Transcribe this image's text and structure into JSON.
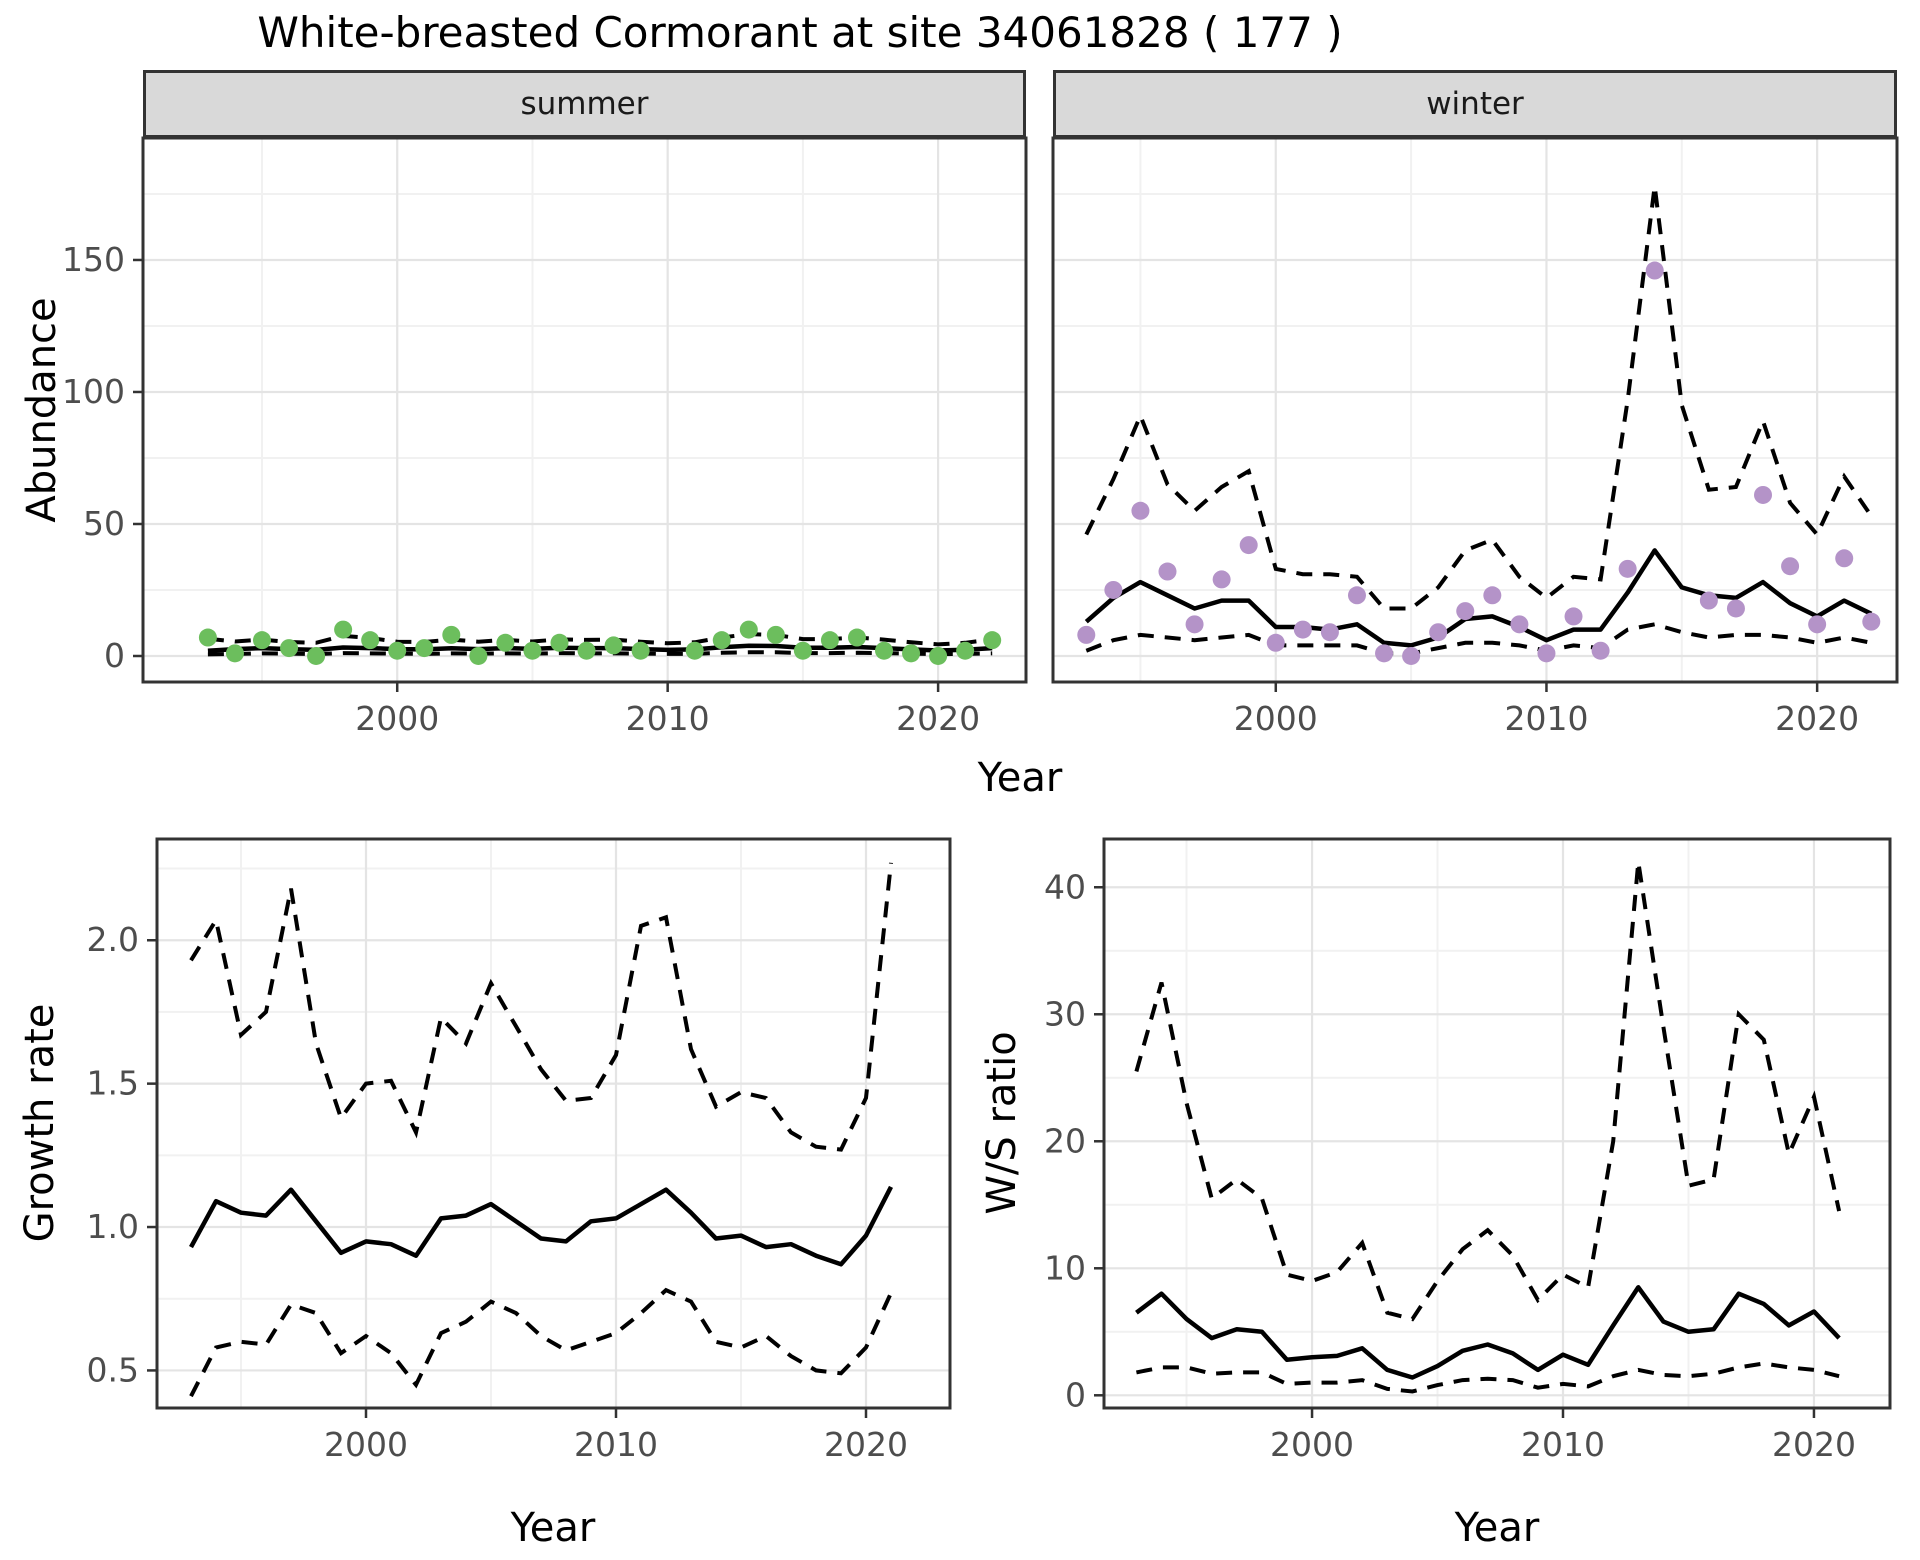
{
  "title": "White-breasted Cormorant at site 34061828 ( 177 )",
  "axes": {
    "abundance_label": "Abundance",
    "growth_label": "Growth rate",
    "ws_label": "W/S ratio",
    "year_label_top": "Year",
    "year_label_growth": "Year",
    "year_label_ws": "Year"
  },
  "facets": {
    "summer": "summer",
    "winter": "winter"
  },
  "colors": {
    "summer_point": "#6cbe5d",
    "winter_point": "#b493c8",
    "line": "#000000",
    "grid_major": "#e4e4e4",
    "grid_minor": "#f1f1f1",
    "panel_border": "#333333",
    "strip_bg": "#d9d9d9",
    "tick_text": "#4d4d4d"
  },
  "chart_data": [
    {
      "id": "summer",
      "type": "line+scatter",
      "facet_label": "summer",
      "ylabel": "Abundance",
      "xlabel": "Year",
      "x_ticks": [
        2000,
        2010,
        2020
      ],
      "x_tick_labels": [
        "2000",
        "2010",
        "2020"
      ],
      "x_minor": [
        1995,
        2005,
        2015
      ],
      "y_ticks": [
        0,
        50,
        100,
        150
      ],
      "y_tick_labels": [
        "0",
        "50",
        "100",
        "150"
      ],
      "y_minor": [
        25,
        75,
        125,
        175
      ],
      "xlim": [
        1990.6,
        2023.25
      ],
      "ylim": [
        -9.85,
        196.2
      ],
      "legend": "none",
      "grid": true,
      "point_color": "#6cbe5d",
      "years": [
        1993,
        1994,
        1995,
        1996,
        1997,
        1998,
        1999,
        2000,
        2001,
        2002,
        2003,
        2004,
        2005,
        2006,
        2007,
        2008,
        2009,
        2010,
        2011,
        2012,
        2013,
        2014,
        2015,
        2016,
        2017,
        2018,
        2019,
        2020,
        2021,
        2022
      ],
      "points": [
        [
          1993,
          7
        ],
        [
          1994,
          1
        ],
        [
          1995,
          6
        ],
        [
          1996,
          3
        ],
        [
          1997,
          0
        ],
        [
          1998,
          10
        ],
        [
          1999,
          6
        ],
        [
          2000,
          2
        ],
        [
          2001,
          3
        ],
        [
          2002,
          8
        ],
        [
          2003,
          0
        ],
        [
          2004,
          5
        ],
        [
          2005,
          2
        ],
        [
          2006,
          5
        ],
        [
          2007,
          2
        ],
        [
          2008,
          4
        ],
        [
          2009,
          2
        ],
        [
          2011,
          2
        ],
        [
          2012,
          6
        ],
        [
          2013,
          10
        ],
        [
          2014,
          8
        ],
        [
          2015,
          2
        ],
        [
          2016,
          6
        ],
        [
          2017,
          7
        ],
        [
          2018,
          2
        ],
        [
          2019,
          1
        ],
        [
          2020,
          0
        ],
        [
          2021,
          2
        ],
        [
          2022,
          6
        ]
      ],
      "fit": [
        2.0,
        2.6,
        3.0,
        2.6,
        2.3,
        3.2,
        3.0,
        2.6,
        2.5,
        2.9,
        2.6,
        3.0,
        2.7,
        3.1,
        3.0,
        3.0,
        2.6,
        2.3,
        2.5,
        3.3,
        3.9,
        3.8,
        3.1,
        3.1,
        3.4,
        3.0,
        2.5,
        2.1,
        2.4,
        3.0
      ],
      "upper": [
        6.5,
        5.5,
        6.2,
        5.3,
        5.0,
        7.6,
        6.8,
        5.4,
        5.3,
        6.2,
        5.4,
        6.1,
        5.5,
        6.3,
        6.1,
        6.2,
        5.4,
        4.8,
        5.2,
        7.0,
        8.3,
        8.0,
        6.4,
        6.4,
        7.0,
        6.2,
        5.2,
        4.4,
        5.0,
        6.3
      ],
      "lower": [
        0.6,
        0.8,
        1.0,
        0.9,
        0.7,
        1.1,
        1.0,
        0.9,
        0.8,
        1.0,
        0.9,
        1.0,
        0.9,
        1.1,
        1.0,
        1.0,
        0.9,
        0.8,
        0.8,
        1.2,
        1.4,
        1.4,
        1.1,
        1.1,
        1.2,
        1.1,
        0.9,
        0.7,
        0.8,
        1.0
      ]
    },
    {
      "id": "winter",
      "type": "line+scatter",
      "facet_label": "winter",
      "ylabel": "Abundance",
      "xlabel": "Year",
      "x_ticks": [
        2000,
        2010,
        2020
      ],
      "x_tick_labels": [
        "2000",
        "2010",
        "2020"
      ],
      "x_minor": [
        1995,
        2005,
        2015
      ],
      "y_ticks": [
        0,
        50,
        100,
        150
      ],
      "y_tick_labels": [
        "0",
        "50",
        "100",
        "150"
      ],
      "y_minor": [
        25,
        75,
        125,
        175
      ],
      "xlim": [
        1991.77,
        2022.95
      ],
      "ylim": [
        -9.85,
        196.2
      ],
      "grid": true,
      "point_color": "#b493c8",
      "years": [
        1993,
        1994,
        1995,
        1996,
        1997,
        1998,
        1999,
        2000,
        2001,
        2002,
        2003,
        2004,
        2005,
        2006,
        2007,
        2008,
        2009,
        2010,
        2011,
        2012,
        2013,
        2014,
        2015,
        2016,
        2017,
        2018,
        2019,
        2020,
        2021,
        2022
      ],
      "points": [
        [
          1993,
          8
        ],
        [
          1994,
          25
        ],
        [
          1995,
          55
        ],
        [
          1996,
          32
        ],
        [
          1997,
          12
        ],
        [
          1998,
          29
        ],
        [
          1999,
          42
        ],
        [
          2000,
          5
        ],
        [
          2001,
          10
        ],
        [
          2002,
          9
        ],
        [
          2003,
          23
        ],
        [
          2004,
          1
        ],
        [
          2005,
          0
        ],
        [
          2006,
          9
        ],
        [
          2007,
          17
        ],
        [
          2008,
          23
        ],
        [
          2009,
          12
        ],
        [
          2010,
          1
        ],
        [
          2011,
          15
        ],
        [
          2012,
          2
        ],
        [
          2013,
          33
        ],
        [
          2014,
          146
        ],
        [
          2016,
          21
        ],
        [
          2017,
          18
        ],
        [
          2018,
          61
        ],
        [
          2019,
          34
        ],
        [
          2020,
          12
        ],
        [
          2021,
          37
        ],
        [
          2022,
          13
        ]
      ],
      "fit": [
        13,
        22,
        28,
        23,
        18,
        21,
        21,
        11,
        11,
        10,
        12,
        5,
        4,
        7,
        14,
        15,
        11,
        6,
        10,
        10,
        24,
        40,
        26,
        23,
        22,
        28,
        20,
        15,
        21,
        16
      ],
      "upper": [
        46,
        67,
        91,
        65,
        55,
        64,
        70,
        33,
        31,
        31,
        30,
        18,
        18,
        26,
        40,
        44,
        30,
        22,
        30,
        29,
        97,
        178,
        95,
        63,
        64,
        89,
        58,
        46,
        68,
        53
      ],
      "lower": [
        2,
        6,
        8,
        7,
        6,
        7,
        8,
        4,
        4,
        4,
        4,
        1,
        1,
        3,
        5,
        5,
        4,
        2,
        4,
        3,
        10,
        12,
        9,
        7,
        8,
        8,
        7,
        5,
        7,
        5
      ]
    },
    {
      "id": "growth",
      "type": "line",
      "ylabel": "Growth rate",
      "xlabel": "Year",
      "x_ticks": [
        2000,
        2010,
        2020
      ],
      "x_tick_labels": [
        "2000",
        "2010",
        "2020"
      ],
      "x_minor": [
        1995,
        2005,
        2015
      ],
      "y_ticks": [
        0.5,
        1.0,
        1.5,
        2.0
      ],
      "y_tick_labels": [
        "0.5",
        "1.0",
        "1.5",
        "2.0"
      ],
      "y_minor": [
        0.75,
        1.25,
        1.75,
        2.25
      ],
      "xlim": [
        1991.64,
        2023.36
      ],
      "ylim": [
        0.369,
        2.353
      ],
      "grid": true,
      "years": [
        1993,
        1994,
        1995,
        1996,
        1997,
        1998,
        1999,
        2000,
        2001,
        2002,
        2003,
        2004,
        2005,
        2006,
        2007,
        2008,
        2009,
        2010,
        2011,
        2012,
        2013,
        2014,
        2015,
        2016,
        2017,
        2018,
        2019,
        2020,
        2021
      ],
      "fit": [
        0.93,
        1.09,
        1.05,
        1.04,
        1.13,
        1.02,
        0.91,
        0.95,
        0.94,
        0.9,
        1.03,
        1.04,
        1.08,
        1.02,
        0.96,
        0.95,
        1.02,
        1.03,
        1.08,
        1.13,
        1.05,
        0.96,
        0.97,
        0.93,
        0.94,
        0.9,
        0.87,
        0.97,
        1.14
      ],
      "upper": [
        1.93,
        2.07,
        1.67,
        1.75,
        2.18,
        1.64,
        1.38,
        1.5,
        1.51,
        1.33,
        1.73,
        1.64,
        1.85,
        1.7,
        1.55,
        1.44,
        1.45,
        1.6,
        2.05,
        2.08,
        1.62,
        1.42,
        1.47,
        1.45,
        1.33,
        1.28,
        1.27,
        1.45,
        2.27
      ],
      "lower": [
        0.41,
        0.58,
        0.6,
        0.59,
        0.73,
        0.7,
        0.56,
        0.62,
        0.56,
        0.45,
        0.63,
        0.67,
        0.74,
        0.7,
        0.62,
        0.57,
        0.6,
        0.63,
        0.7,
        0.78,
        0.74,
        0.6,
        0.58,
        0.62,
        0.55,
        0.5,
        0.49,
        0.58,
        0.77
      ]
    },
    {
      "id": "ws",
      "type": "line",
      "ylabel": "W/S ratio",
      "xlabel": "Year",
      "x_ticks": [
        2000,
        2010,
        2020
      ],
      "x_tick_labels": [
        "2000",
        "2010",
        "2020"
      ],
      "x_minor": [
        1995,
        2005,
        2015
      ],
      "y_ticks": [
        0,
        10,
        20,
        30,
        40
      ],
      "y_tick_labels": [
        "0",
        "10",
        "20",
        "30",
        "40"
      ],
      "y_minor": [
        5,
        15,
        25,
        35
      ],
      "xlim": [
        1991.71,
        2023.03
      ],
      "ylim": [
        -1.0,
        43.8
      ],
      "grid": true,
      "years": [
        1993,
        1994,
        1995,
        1996,
        1997,
        1998,
        1999,
        2000,
        2001,
        2002,
        2003,
        2004,
        2005,
        2006,
        2007,
        2008,
        2009,
        2010,
        2011,
        2012,
        2013,
        2014,
        2015,
        2016,
        2017,
        2018,
        2019,
        2020,
        2021
      ],
      "fit": [
        6.5,
        8.0,
        6.0,
        4.5,
        5.2,
        5.0,
        2.8,
        3.0,
        3.1,
        3.7,
        2.0,
        1.4,
        2.3,
        3.5,
        4.0,
        3.3,
        2.0,
        3.2,
        2.4,
        5.5,
        8.5,
        5.8,
        5.0,
        5.2,
        8.0,
        7.2,
        5.5,
        6.6,
        4.5
      ],
      "upper": [
        25.5,
        32.5,
        23.0,
        15.5,
        17.0,
        15.5,
        9.5,
        9.0,
        9.7,
        12.0,
        6.5,
        6.0,
        9.0,
        11.5,
        13.0,
        11.0,
        7.5,
        9.5,
        8.5,
        20.0,
        42.0,
        29.0,
        16.5,
        17.0,
        30.0,
        28.0,
        19.0,
        23.5,
        14.5
      ],
      "lower": [
        1.8,
        2.2,
        2.2,
        1.7,
        1.8,
        1.8,
        0.9,
        1.0,
        1.0,
        1.2,
        0.5,
        0.3,
        0.8,
        1.2,
        1.3,
        1.2,
        0.6,
        0.9,
        0.7,
        1.5,
        2.0,
        1.6,
        1.5,
        1.7,
        2.2,
        2.5,
        2.2,
        2.0,
        1.5
      ]
    }
  ]
}
